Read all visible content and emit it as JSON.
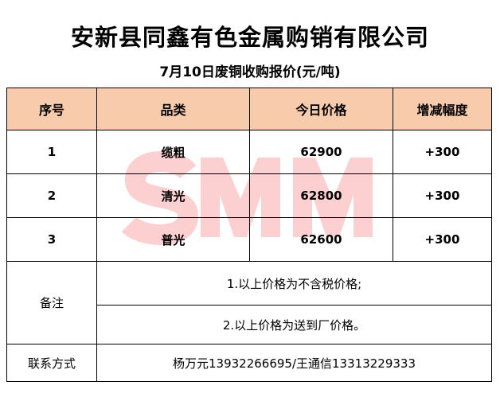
{
  "title": "安新县同鑫有色金属购销有限公司",
  "subtitle": "7月10日废铜收购报价(元/吨)",
  "watermark": "SMM",
  "colors": {
    "header_bg": "#f8cbad",
    "watermark": "#fccfd0"
  },
  "table": {
    "headers": [
      "序号",
      "品类",
      "今日价格",
      "增减幅度"
    ],
    "rows": [
      {
        "index": "1",
        "category": "缆粗",
        "price": "62900",
        "change": "+300"
      },
      {
        "index": "2",
        "category": "清光",
        "price": "62800",
        "change": "+300"
      },
      {
        "index": "3",
        "category": "普光",
        "price": "62600",
        "change": "+300"
      }
    ],
    "notes_label": "备注",
    "notes": [
      "1.以上价格为不含税价格;",
      "2.以上价格为送到厂价格。"
    ],
    "contact_label": "联系方式",
    "contact": "杨万元13932266695/王通信13313229333"
  }
}
